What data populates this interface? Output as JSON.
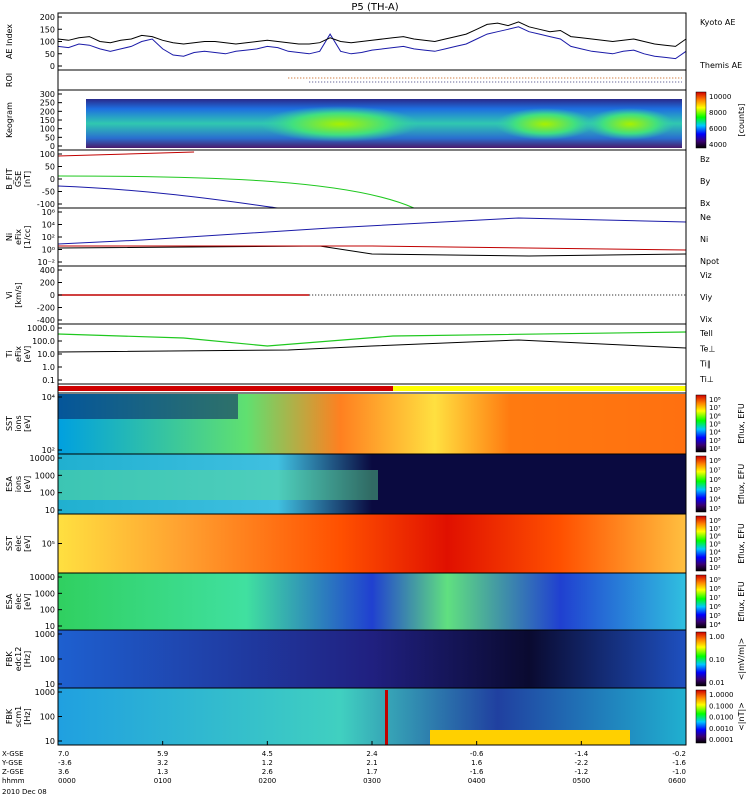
{
  "title": "P5 (TH-A)",
  "date_label": "2010 Dec 08",
  "chart_data": {
    "type": "line",
    "time": {
      "xlim": [
        0,
        6
      ],
      "rows": [
        {
          "label": "X-GSE",
          "values": [
            "7.0",
            "5.9",
            "4.5",
            "2.4",
            "-0.6",
            "-1.4",
            "-0.2"
          ]
        },
        {
          "label": "Y-GSE",
          "values": [
            "-3.6",
            "3.2",
            "1.2",
            "2.1",
            "1.6",
            "-2.2",
            "-1.6"
          ]
        },
        {
          "label": "Z-GSE",
          "values": [
            "3.6",
            "1.3",
            "2.6",
            "1.7",
            "-1.6",
            "-1.2",
            "-1.0"
          ]
        },
        {
          "label": "hhmm",
          "values": [
            "0000",
            "0100",
            "0200",
            "0300",
            "0400",
            "0500",
            "0600"
          ]
        }
      ]
    },
    "panels": [
      {
        "id": "ae",
        "ylabel": [
          "AE Index"
        ],
        "yticks": [
          "200",
          "150",
          "100",
          "50",
          "0"
        ],
        "legend": [
          {
            "text": "Kyoto AE",
            "color": "#1a1aa8"
          },
          {
            "text": "Themis AE",
            "color": "#000000"
          }
        ],
        "series": [
          {
            "name": "Kyoto AE",
            "color": "#1a1aa8",
            "x": [
              0,
              0.1,
              0.2,
              0.3,
              0.4,
              0.5,
              0.6,
              0.7,
              0.8,
              0.9,
              1.0,
              1.1,
              1.2,
              1.3,
              1.4,
              1.5,
              1.6,
              1.7,
              1.8,
              1.9,
              2.0,
              2.1,
              2.2,
              2.3,
              2.4,
              2.5,
              2.6,
              2.7,
              2.8,
              2.9,
              3.0,
              3.1,
              3.2,
              3.3,
              3.4,
              3.5,
              3.6,
              3.7,
              3.8,
              3.9,
              4.0,
              4.1,
              4.2,
              4.3,
              4.4,
              4.5,
              4.6,
              4.7,
              4.8,
              4.9,
              5.0,
              5.1,
              5.2,
              5.3,
              5.4,
              5.5,
              5.6,
              5.7,
              5.8,
              5.9,
              6.0
            ],
            "y": [
              80,
              75,
              90,
              85,
              70,
              60,
              70,
              80,
              100,
              110,
              70,
              45,
              40,
              55,
              60,
              55,
              50,
              60,
              65,
              70,
              80,
              75,
              60,
              55,
              50,
              60,
              130,
              60,
              50,
              55,
              65,
              70,
              75,
              80,
              70,
              65,
              60,
              70,
              80,
              90,
              110,
              130,
              140,
              150,
              160,
              140,
              130,
              120,
              110,
              80,
              70,
              60,
              55,
              50,
              60,
              65,
              50,
              40,
              35,
              30,
              60
            ]
          },
          {
            "name": "Themis AE",
            "color": "#000000",
            "x": [
              0,
              0.1,
              0.2,
              0.3,
              0.4,
              0.5,
              0.6,
              0.7,
              0.8,
              0.9,
              1.0,
              1.1,
              1.2,
              1.3,
              1.4,
              1.5,
              1.6,
              1.7,
              1.8,
              1.9,
              2.0,
              2.1,
              2.2,
              2.3,
              2.4,
              2.5,
              2.6,
              2.7,
              2.8,
              2.9,
              3.0,
              3.1,
              3.2,
              3.3,
              3.4,
              3.5,
              3.6,
              3.7,
              3.8,
              3.9,
              4.0,
              4.1,
              4.2,
              4.3,
              4.4,
              4.5,
              4.6,
              4.7,
              4.8,
              4.9,
              5.0,
              5.1,
              5.2,
              5.3,
              5.4,
              5.5,
              5.6,
              5.7,
              5.8,
              5.9,
              6.0
            ],
            "y": [
              110,
              105,
              115,
              120,
              100,
              95,
              105,
              110,
              125,
              120,
              105,
              95,
              90,
              95,
              100,
              100,
              95,
              90,
              95,
              100,
              105,
              100,
              95,
              90,
              90,
              95,
              115,
              100,
              95,
              100,
              105,
              110,
              115,
              120,
              110,
              105,
              100,
              110,
              120,
              130,
              150,
              170,
              175,
              165,
              180,
              160,
              150,
              140,
              145,
              120,
              115,
              110,
              105,
              100,
              105,
              110,
              100,
              90,
              85,
              80,
              110
            ]
          }
        ]
      },
      {
        "id": "roi",
        "ylabel": [
          "ROI"
        ],
        "yticks": []
      },
      {
        "id": "keogram",
        "ylabel": [
          "Keogram"
        ],
        "yticks": [
          "300",
          "250",
          "200",
          "150",
          "100",
          "50",
          "0"
        ],
        "colorbar": {
          "ticks": [
            "10000",
            "8000",
            "6000",
            "4000"
          ],
          "label": "[counts]"
        }
      },
      {
        "id": "bfit",
        "ylabel": [
          "B_FIT",
          "GSE",
          "[nT]"
        ],
        "yticks": [
          "100",
          "50",
          "0",
          "-50",
          "-100"
        ],
        "legend": [
          {
            "text": "Bz",
            "color": "#c00000"
          },
          {
            "text": "By",
            "color": "#1fc81f"
          },
          {
            "text": "Bx",
            "color": "#1a1aa8"
          }
        ]
      },
      {
        "id": "density",
        "ylabel": [
          "Ni",
          "eFix",
          "[1/cc]"
        ],
        "yticks": [
          "10⁶",
          "10⁴",
          "10²",
          "10⁰",
          "10⁻²"
        ],
        "legend": [
          {
            "text": "Ne",
            "color": "#c00000"
          },
          {
            "text": "Ni",
            "color": "#000000"
          },
          {
            "text": "Npot",
            "color": "#1a1aa8"
          }
        ]
      },
      {
        "id": "velocity",
        "ylabel": [
          "Vi",
          "[km/s]"
        ],
        "yticks": [
          "400",
          "200",
          "0",
          "-200",
          "-400"
        ],
        "legend": [
          {
            "text": "Viz",
            "color": "#c00000"
          },
          {
            "text": "Viy",
            "color": "#1fc81f"
          },
          {
            "text": "Vix",
            "color": "#1a1aa8"
          }
        ]
      },
      {
        "id": "temperature",
        "ylabel": [
          "Ti",
          "eFix",
          "[eV]"
        ],
        "yticks": [
          "1000.0",
          "100.0",
          "10.0",
          "1.0",
          "0.1"
        ],
        "legend": [
          {
            "text": "Tell",
            "color": "#000000"
          },
          {
            "text": "Te⊥",
            "color": "#c00000"
          },
          {
            "text": "Ti∥",
            "color": "#1fc81f"
          },
          {
            "text": "Ti⊥",
            "color": "#1a1aa8"
          }
        ]
      },
      {
        "id": "mode",
        "ylabel": [],
        "yticks": []
      },
      {
        "id": "sst_i",
        "ylabel": [
          "SST",
          "ions",
          "[eV]"
        ],
        "yticks": [
          "10⁴",
          "10²"
        ],
        "colorbar": {
          "ticks": [
            "10⁸",
            "10⁷",
            "10⁶",
            "10⁵",
            "10⁴",
            "10³",
            "10²"
          ],
          "label": "Eflux, EFU"
        }
      },
      {
        "id": "esa_i",
        "ylabel": [
          "ESA",
          "ions",
          "[eV]"
        ],
        "yticks": [
          "10000",
          "1000",
          "100",
          "10"
        ],
        "colorbar": {
          "ticks": [
            "10⁸",
            "10⁷",
            "10⁶",
            "10⁵",
            "10⁴",
            "10³"
          ],
          "label": "Eflux, EFU"
        }
      },
      {
        "id": "sst_e",
        "ylabel": [
          "SST",
          "elec",
          "[eV]"
        ],
        "yticks": [
          "10⁵"
        ],
        "colorbar": {
          "ticks": [
            "10⁸",
            "10⁷",
            "10⁶",
            "10⁵",
            "10⁴",
            "10³",
            "10²"
          ],
          "label": "Eflux, EFU"
        }
      },
      {
        "id": "esa_e",
        "ylabel": [
          "ESA",
          "elec",
          "[eV]"
        ],
        "yticks": [
          "10000",
          "1000",
          "100",
          "10"
        ],
        "colorbar": {
          "ticks": [
            "10⁹",
            "10⁸",
            "10⁷",
            "10⁶",
            "10⁵",
            "10⁴"
          ],
          "label": "Eflux, EFU"
        }
      },
      {
        "id": "fbk_e",
        "ylabel": [
          "FBK",
          "edc12",
          "[Hz]"
        ],
        "yticks": [
          "1000",
          "100",
          "10"
        ],
        "colorbar": {
          "ticks": [
            "1.00",
            "0.10",
            "0.01"
          ],
          "label": "<|mV/m|>"
        }
      },
      {
        "id": "fbk_b",
        "ylabel": [
          "FBK",
          "scm1",
          "[Hz]"
        ],
        "yticks": [
          "1000",
          "100",
          "10"
        ],
        "colorbar": {
          "ticks": [
            "1.0000",
            "0.1000",
            "0.0100",
            "0.0010",
            "0.0001"
          ],
          "label": "<|nT|>"
        }
      }
    ]
  }
}
